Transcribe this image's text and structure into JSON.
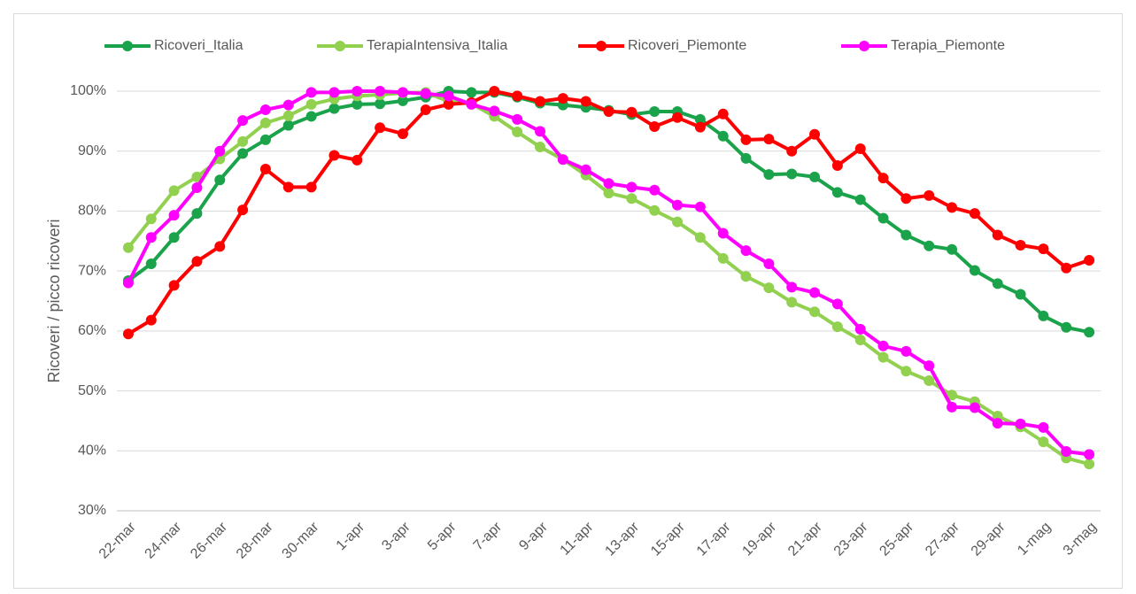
{
  "chart_data": {
    "type": "line",
    "y_label": "Ricoveri / picco ricoveri",
    "categories": [
      "22-mar",
      null,
      "24-mar",
      null,
      "26-mar",
      null,
      "28-mar",
      null,
      "30-mar",
      null,
      "1-apr",
      null,
      "3-apr",
      null,
      "5-apr",
      null,
      "7-apr",
      null,
      "9-apr",
      null,
      "11-apr",
      null,
      "13-apr",
      null,
      "15-apr",
      null,
      "17-apr",
      null,
      "19-apr",
      null,
      "21-apr",
      null,
      "23-apr",
      null,
      "25-apr",
      null,
      "27-apr",
      null,
      "29-apr",
      null,
      "1-mag",
      null,
      "3-mag"
    ],
    "series": [
      {
        "name": "Ricoveri_Italia",
        "color": "#1aa34a",
        "values": [
          68.4,
          71.2,
          75.6,
          79.6,
          85.2,
          89.6,
          91.9,
          94.3,
          95.8,
          97.1,
          97.8,
          97.9,
          98.4,
          99.0,
          100,
          99.8,
          99.8,
          99.0,
          98.0,
          97.7,
          97.3,
          96.8,
          96.1,
          96.6,
          96.6,
          95.3,
          92.5,
          88.8,
          86.1,
          86.2,
          85.7,
          83.1,
          81.9,
          78.8,
          76.0,
          74.2,
          73.6,
          70.1,
          67.9,
          66.1,
          62.5,
          60.6,
          59.8
        ]
      },
      {
        "name": "TerapiaIntensiva_Italia",
        "color": "#92d050",
        "values": [
          73.9,
          78.7,
          83.4,
          85.7,
          88.7,
          91.6,
          94.7,
          95.9,
          97.8,
          98.7,
          99.2,
          99.4,
          99.7,
          99.8,
          98.3,
          97.9,
          95.8,
          93.2,
          90.7,
          88.6,
          86.0,
          83.0,
          82.1,
          80.1,
          78.2,
          75.6,
          72.1,
          69.1,
          67.2,
          64.8,
          63.2,
          60.7,
          58.5,
          55.6,
          53.3,
          51.7,
          49.3,
          48.2,
          45.8,
          44.0,
          41.5,
          38.8,
          37.8
        ]
      },
      {
        "name": "Ricoveri_Piemonte",
        "color": "#ff0000",
        "values": [
          59.5,
          61.8,
          67.6,
          71.6,
          74.1,
          80.2,
          87.0,
          84.0,
          84.0,
          89.3,
          88.5,
          93.9,
          92.9,
          96.9,
          97.8,
          98.1,
          100,
          99.2,
          98.3,
          98.8,
          98.3,
          96.6,
          96.5,
          94.1,
          95.6,
          94.0,
          96.2,
          91.9,
          92.0,
          90.0,
          92.8,
          87.6,
          90.4,
          85.5,
          82.1,
          82.6,
          80.6,
          79.6,
          76.0,
          74.3,
          73.7,
          70.5,
          71.8
        ]
      },
      {
        "name": "Terapia_Piemonte",
        "color": "#ff00ff",
        "values": [
          68.0,
          75.6,
          79.3,
          83.9,
          90.0,
          95.1,
          96.9,
          97.7,
          99.8,
          99.8,
          100,
          100,
          99.8,
          99.6,
          99.2,
          97.8,
          96.7,
          95.3,
          93.3,
          88.6,
          86.9,
          84.6,
          84.0,
          83.5,
          81.0,
          80.7,
          76.3,
          73.4,
          71.2,
          67.3,
          66.4,
          64.5,
          60.3,
          57.5,
          56.6,
          54.2,
          47.3,
          47.2,
          44.6,
          44.5,
          43.9,
          39.9,
          39.4
        ]
      }
    ],
    "ylim": [
      30,
      100
    ],
    "yticks": [
      {
        "value": 30,
        "label": "30%"
      },
      {
        "value": 40,
        "label": "40%"
      },
      {
        "value": 50,
        "label": "50%"
      },
      {
        "value": 60,
        "label": "60%"
      },
      {
        "value": 70,
        "label": "70%"
      },
      {
        "value": 80,
        "label": "80%"
      },
      {
        "value": 90,
        "label": "90%"
      },
      {
        "value": 100,
        "label": "100%"
      }
    ],
    "grid": true,
    "legend": "top"
  }
}
